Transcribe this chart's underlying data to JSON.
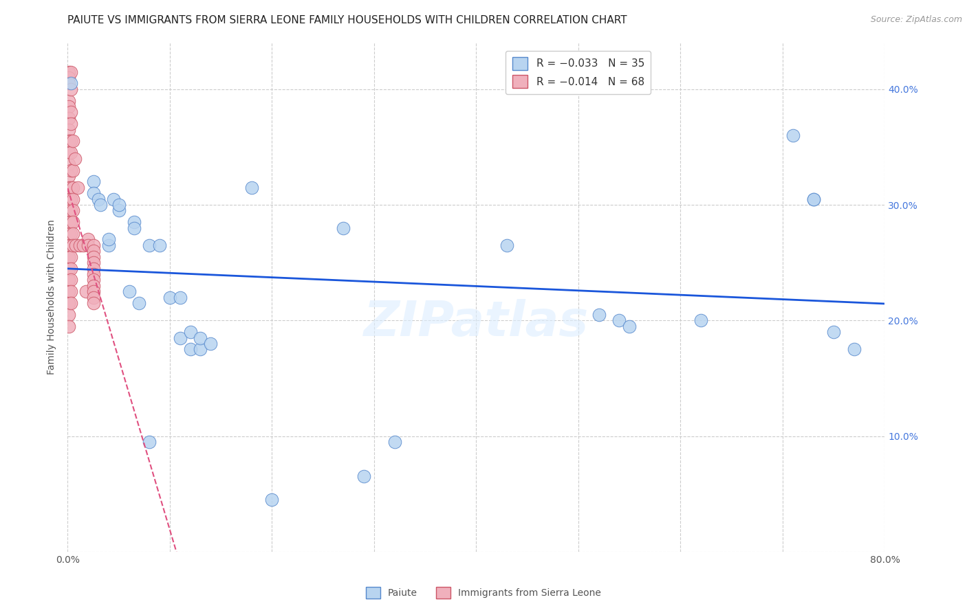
{
  "title": "PAIUTE VS IMMIGRANTS FROM SIERRA LEONE FAMILY HOUSEHOLDS WITH CHILDREN CORRELATION CHART",
  "source": "Source: ZipAtlas.com",
  "ylabel": "Family Households with Children",
  "xlim": [
    0.0,
    0.8
  ],
  "ylim": [
    0.0,
    0.44
  ],
  "xticks": [
    0.0,
    0.1,
    0.2,
    0.3,
    0.4,
    0.5,
    0.6,
    0.7,
    0.8
  ],
  "xticklabels": [
    "0.0%",
    "",
    "",
    "",
    "",
    "",
    "",
    "",
    "80.0%"
  ],
  "yticks": [
    0.0,
    0.1,
    0.2,
    0.3,
    0.4
  ],
  "yticklabels_right": [
    "",
    "10.0%",
    "20.0%",
    "30.0%",
    "40.0%"
  ],
  "paiute_color": "#b8d4f0",
  "paiute_edge": "#5588cc",
  "sierra_leone_color": "#f0b0bc",
  "sierra_leone_edge": "#cc5566",
  "trend_paiute_color": "#1a56db",
  "trend_sierra_color": "#e05080",
  "background_color": "#ffffff",
  "grid_color": "#cccccc",
  "watermark": "ZIPatlas",
  "paiute_points": [
    [
      0.003,
      0.405
    ],
    [
      0.025,
      0.32
    ],
    [
      0.025,
      0.31
    ],
    [
      0.03,
      0.305
    ],
    [
      0.032,
      0.3
    ],
    [
      0.04,
      0.265
    ],
    [
      0.04,
      0.27
    ],
    [
      0.045,
      0.305
    ],
    [
      0.05,
      0.295
    ],
    [
      0.05,
      0.3
    ],
    [
      0.06,
      0.225
    ],
    [
      0.065,
      0.285
    ],
    [
      0.065,
      0.28
    ],
    [
      0.07,
      0.215
    ],
    [
      0.08,
      0.265
    ],
    [
      0.09,
      0.265
    ],
    [
      0.1,
      0.22
    ],
    [
      0.11,
      0.22
    ],
    [
      0.11,
      0.185
    ],
    [
      0.12,
      0.19
    ],
    [
      0.12,
      0.175
    ],
    [
      0.13,
      0.175
    ],
    [
      0.13,
      0.185
    ],
    [
      0.14,
      0.18
    ],
    [
      0.18,
      0.315
    ],
    [
      0.27,
      0.28
    ],
    [
      0.43,
      0.265
    ],
    [
      0.52,
      0.205
    ],
    [
      0.54,
      0.2
    ],
    [
      0.55,
      0.195
    ],
    [
      0.62,
      0.2
    ],
    [
      0.71,
      0.36
    ],
    [
      0.73,
      0.305
    ],
    [
      0.73,
      0.305
    ],
    [
      0.75,
      0.19
    ],
    [
      0.77,
      0.175
    ],
    [
      0.08,
      0.095
    ],
    [
      0.32,
      0.095
    ],
    [
      0.2,
      0.045
    ],
    [
      0.29,
      0.065
    ]
  ],
  "sierra_leone_points": [
    [
      0.001,
      0.415
    ],
    [
      0.001,
      0.41
    ],
    [
      0.001,
      0.405
    ],
    [
      0.001,
      0.39
    ],
    [
      0.001,
      0.385
    ],
    [
      0.001,
      0.375
    ],
    [
      0.001,
      0.365
    ],
    [
      0.001,
      0.355
    ],
    [
      0.001,
      0.345
    ],
    [
      0.001,
      0.335
    ],
    [
      0.001,
      0.325
    ],
    [
      0.001,
      0.315
    ],
    [
      0.001,
      0.305
    ],
    [
      0.001,
      0.295
    ],
    [
      0.001,
      0.285
    ],
    [
      0.001,
      0.275
    ],
    [
      0.001,
      0.265
    ],
    [
      0.001,
      0.255
    ],
    [
      0.001,
      0.245
    ],
    [
      0.001,
      0.235
    ],
    [
      0.001,
      0.225
    ],
    [
      0.001,
      0.215
    ],
    [
      0.001,
      0.205
    ],
    [
      0.001,
      0.195
    ],
    [
      0.003,
      0.415
    ],
    [
      0.003,
      0.4
    ],
    [
      0.003,
      0.38
    ],
    [
      0.003,
      0.37
    ],
    [
      0.003,
      0.355
    ],
    [
      0.003,
      0.345
    ],
    [
      0.003,
      0.33
    ],
    [
      0.003,
      0.315
    ],
    [
      0.003,
      0.305
    ],
    [
      0.003,
      0.295
    ],
    [
      0.003,
      0.285
    ],
    [
      0.003,
      0.275
    ],
    [
      0.003,
      0.265
    ],
    [
      0.003,
      0.255
    ],
    [
      0.003,
      0.245
    ],
    [
      0.003,
      0.235
    ],
    [
      0.003,
      0.225
    ],
    [
      0.003,
      0.215
    ],
    [
      0.005,
      0.355
    ],
    [
      0.005,
      0.33
    ],
    [
      0.005,
      0.315
    ],
    [
      0.005,
      0.305
    ],
    [
      0.005,
      0.295
    ],
    [
      0.005,
      0.285
    ],
    [
      0.005,
      0.275
    ],
    [
      0.005,
      0.265
    ],
    [
      0.007,
      0.34
    ],
    [
      0.008,
      0.265
    ],
    [
      0.01,
      0.315
    ],
    [
      0.012,
      0.265
    ],
    [
      0.015,
      0.265
    ],
    [
      0.018,
      0.225
    ],
    [
      0.02,
      0.27
    ],
    [
      0.02,
      0.265
    ],
    [
      0.025,
      0.265
    ],
    [
      0.025,
      0.26
    ],
    [
      0.025,
      0.255
    ],
    [
      0.025,
      0.25
    ],
    [
      0.025,
      0.245
    ],
    [
      0.025,
      0.24
    ],
    [
      0.025,
      0.235
    ],
    [
      0.025,
      0.23
    ],
    [
      0.025,
      0.225
    ],
    [
      0.025,
      0.22
    ],
    [
      0.025,
      0.215
    ]
  ],
  "title_fontsize": 11,
  "axis_label_fontsize": 10,
  "tick_fontsize": 10,
  "legend_fontsize": 11
}
